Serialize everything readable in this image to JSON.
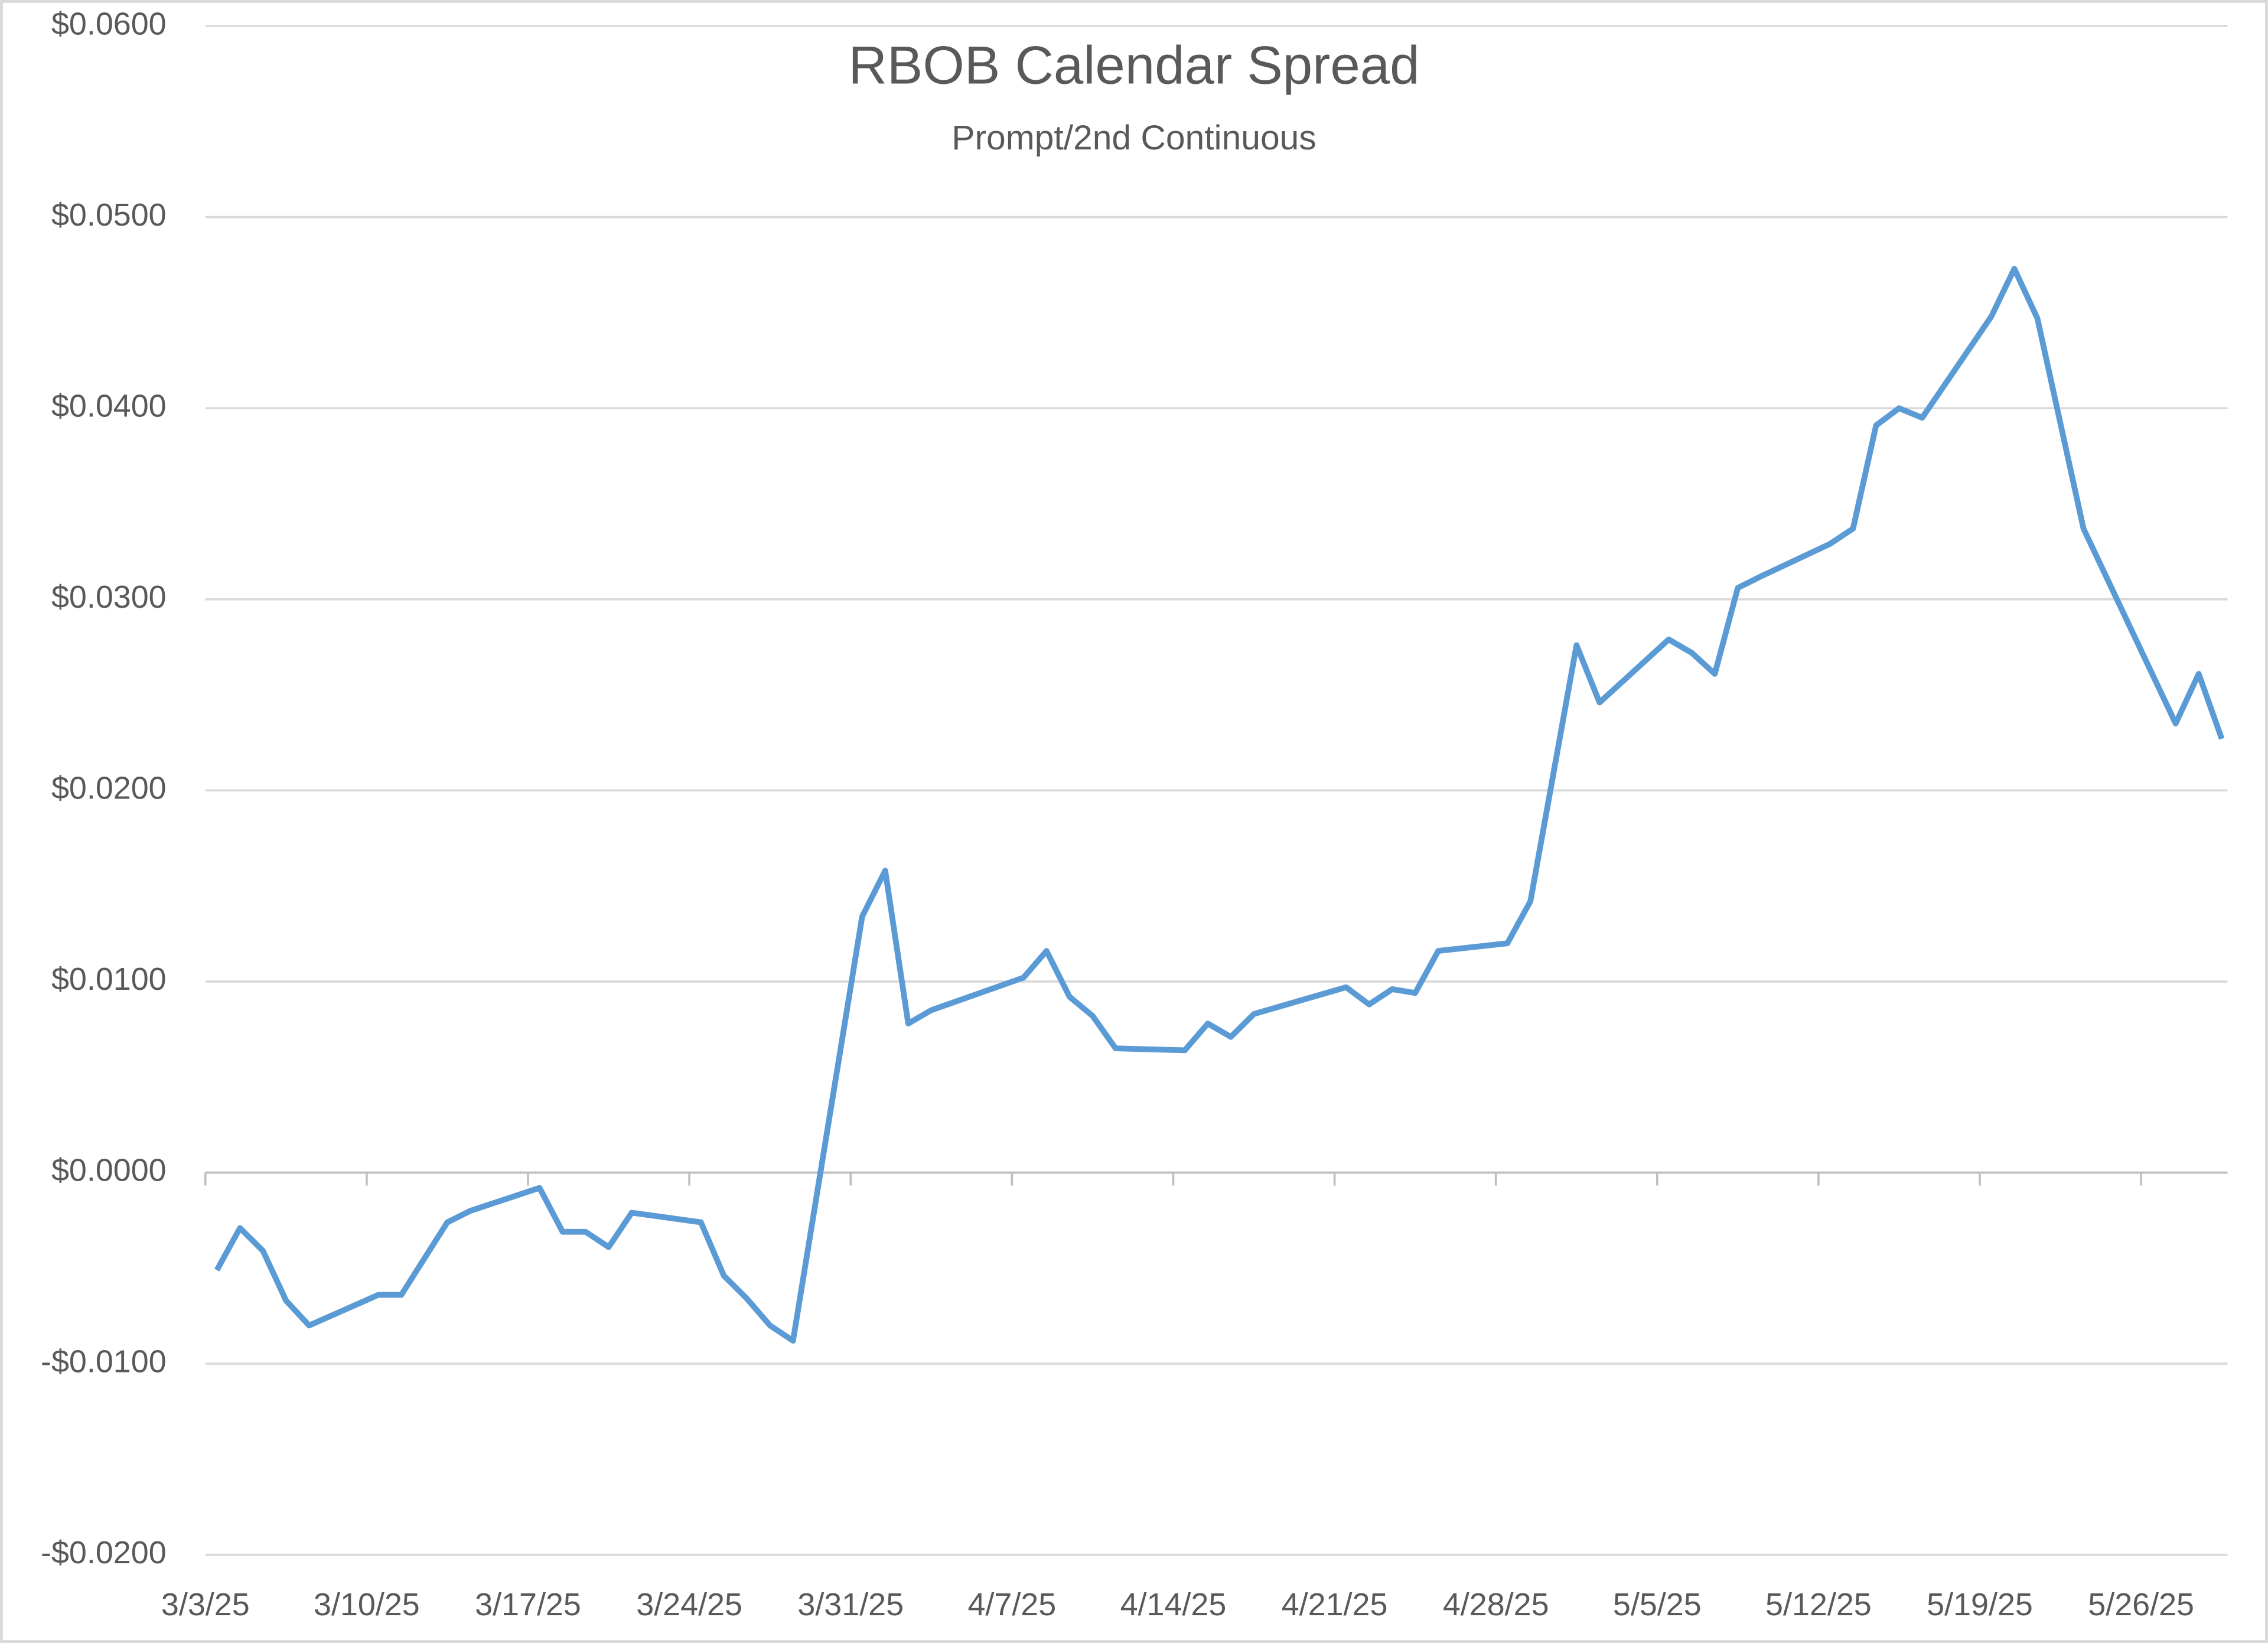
{
  "chart_data": {
    "type": "line",
    "title": "RBOB Calendar Spread",
    "subtitle": "Prompt/2nd Continuous",
    "x": [
      "3/3/25",
      "3/4/25",
      "3/5/25",
      "3/6/25",
      "3/7/25",
      "3/10/25",
      "3/11/25",
      "3/13/25",
      "3/14/25",
      "3/17/25",
      "3/18/25",
      "3/19/25",
      "3/20/25",
      "3/21/25",
      "3/24/25",
      "3/25/25",
      "3/26/25",
      "3/27/25",
      "3/28/25",
      "3/31/25",
      "4/1/25",
      "4/2/25",
      "4/3/25",
      "4/7/25",
      "4/8/25",
      "4/9/25",
      "4/10/25",
      "4/11/25",
      "4/14/25",
      "4/15/25",
      "4/16/25",
      "4/17/25",
      "4/21/25",
      "4/22/25",
      "4/23/25",
      "4/24/25",
      "4/25/25",
      "4/28/25",
      "4/29/25",
      "5/1/25",
      "5/2/25",
      "5/5/25",
      "5/6/25",
      "5/7/25",
      "5/8/25",
      "5/9/25",
      "5/12/25",
      "5/13/25",
      "5/14/25",
      "5/15/25",
      "5/16/25",
      "5/19/25",
      "5/20/25",
      "5/21/25",
      "5/23/25",
      "5/27/25",
      "5/28/25",
      "5/29/25"
    ],
    "series": [
      {
        "name": "Prompt/2nd Continuous",
        "color": "#5b9bd5",
        "values": [
          -0.0051,
          -0.0029,
          -0.0041,
          -0.0067,
          -0.008,
          -0.0064,
          -0.0064,
          -0.0026,
          -0.002,
          -0.0008,
          -0.0031,
          -0.0031,
          -0.0039,
          -0.0021,
          -0.0026,
          -0.0054,
          -0.0066,
          -0.008,
          -0.0088,
          0.0134,
          0.0158,
          0.0078,
          0.0085,
          0.0102,
          0.0116,
          0.0092,
          0.0082,
          0.0065,
          0.0064,
          0.0078,
          0.0071,
          0.0083,
          0.0097,
          0.0088,
          0.0096,
          0.0094,
          0.0116,
          0.012,
          0.0142,
          0.0276,
          0.0246,
          0.0279,
          0.0272,
          0.0261,
          0.0306,
          0.0312,
          0.0329,
          0.0337,
          0.0391,
          0.04,
          0.0395,
          0.0448,
          0.0473,
          0.0447,
          0.0337,
          0.0235,
          0.0261,
          0.0227
        ]
      }
    ],
    "xlim": [
      "3/3/25",
      "5/30/25"
    ],
    "xticks": [
      "3/3/25",
      "3/10/25",
      "3/17/25",
      "3/24/25",
      "3/31/25",
      "4/7/25",
      "4/14/25",
      "4/21/25",
      "4/28/25",
      "5/5/25",
      "5/12/25",
      "5/19/25",
      "5/26/25"
    ],
    "ylim": [
      -0.02,
      0.06
    ],
    "yticks": [
      {
        "value": -0.02,
        "label": "-$0.0200"
      },
      {
        "value": -0.01,
        "label": "-$0.0100"
      },
      {
        "value": 0,
        "label": "$0.0000"
      },
      {
        "value": 0.01,
        "label": "$0.0100"
      },
      {
        "value": 0.02,
        "label": "$0.0200"
      },
      {
        "value": 0.03,
        "label": "$0.0300"
      },
      {
        "value": 0.04,
        "label": "$0.0400"
      },
      {
        "value": 0.05,
        "label": "$0.0500"
      },
      {
        "value": 0.06,
        "label": "$0.0600"
      }
    ],
    "grid": true
  }
}
